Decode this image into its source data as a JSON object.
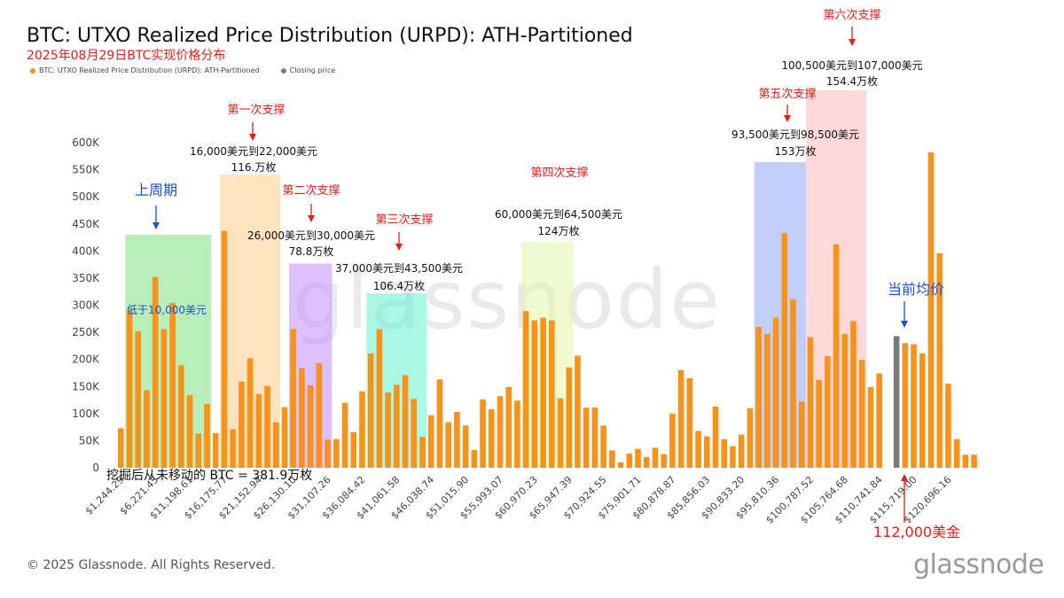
{
  "header": {
    "title": "BTC: UTXO Realized Price Distribution (URPD): ATH-Partitioned",
    "subtitle": "2025年08月29日BTC实现价格分布"
  },
  "legend": [
    {
      "label": "BTC: UTXO Realized Price Distribution (URPD): ATH-Partitioned",
      "color": "#f7931a"
    },
    {
      "label": "Closing price",
      "color": "#7a7a7a"
    }
  ],
  "footer": {
    "copyright": "© 2025 Glassnode. All Rights Reserved.",
    "brand": "glassnode",
    "watermark": "glassnode"
  },
  "chart_data": {
    "type": "bar",
    "yticks": [
      "0",
      "50K",
      "100K",
      "150K",
      "200K",
      "250K",
      "300K",
      "350K",
      "400K",
      "450K",
      "500K",
      "550K",
      "600K"
    ],
    "ylim": [
      0,
      600000
    ],
    "xtick_labels": [
      "$1,244.29",
      "$6,221.45",
      "$11,198.61",
      "$16,175.77",
      "$21,152.94",
      "$26,130.10",
      "$31,107.26",
      "$36,084.42",
      "$41,061.58",
      "$46,038.74",
      "$51,015.90",
      "$55,993.07",
      "$60,970.23",
      "$65,947.39",
      "$70,924.55",
      "$75,901.71",
      "$80,878.87",
      "$85,856.03",
      "$90,833.20",
      "$95,810.36",
      "$100,787.52",
      "$105,764.68",
      "$110,741.84",
      "$115,719.00",
      "$120,696.16"
    ],
    "colors": {
      "bar": "#f7931a",
      "closing": "#7a7a7a"
    },
    "closing_index": 90,
    "values": [
      73000,
      291000,
      252000,
      143000,
      352000,
      256000,
      304000,
      189000,
      134000,
      63000,
      118000,
      64000,
      437000,
      71000,
      159000,
      202000,
      136000,
      151000,
      84000,
      112000,
      256000,
      184000,
      152000,
      193000,
      52000,
      53000,
      120000,
      66000,
      141000,
      211000,
      256000,
      139000,
      153000,
      171000,
      127000,
      57000,
      97000,
      163000,
      84000,
      103000,
      78000,
      33000,
      126000,
      108000,
      132000,
      149000,
      124000,
      289000,
      272000,
      277000,
      272000,
      128000,
      185000,
      207000,
      111000,
      111000,
      78000,
      32000,
      10000,
      26000,
      35000,
      20000,
      37000,
      25000,
      100000,
      180000,
      165000,
      68000,
      58000,
      113000,
      53000,
      40000,
      61000,
      110000,
      260000,
      247000,
      277000,
      433000,
      311000,
      122000,
      241000,
      162000,
      206000,
      412000,
      247000,
      271000,
      199000,
      149000,
      174000,
      0,
      243000,
      230000,
      228000,
      211000,
      582000,
      396000,
      155000,
      53000,
      24000,
      24000
    ],
    "zones": [
      {
        "start": 1,
        "end": 10,
        "color": "#7fe07f",
        "label": "低于10,000美元",
        "label_color": "#1a4fd6",
        "top": 430000
      },
      {
        "start": 12,
        "end": 18,
        "color": "#ffcc88",
        "top": 541000
      },
      {
        "start": 20,
        "end": 24,
        "color": "#c58cff",
        "top": 377000
      },
      {
        "start": 29,
        "end": 35,
        "color": "#66f0d0",
        "top": 322000
      },
      {
        "start": 47,
        "end": 52,
        "color": "#e6f5a8",
        "top": 417000
      },
      {
        "start": 74,
        "end": 79,
        "color": "#8fa8f5",
        "top": 564000
      },
      {
        "start": 80,
        "end": 86,
        "color": "#ffb8bc",
        "top": 698000
      }
    ],
    "annotations": {
      "s1_title": "第一次支撑",
      "s1_range": "16,000美元到22,000美元",
      "s1_amount": "116.万枚",
      "s2_title": "第二次支撑",
      "s2_range": "26,000美元到30,000美元",
      "s2_amount": "78.8万枚",
      "s3_title": "第三次支撑",
      "s3_range": "37,000美元到43,500美元",
      "s3_amount": "106.4万枚",
      "s4_title": "第四次支撑",
      "s4_range": "60,000美元到64,500美元",
      "s4_amount": "124万枚",
      "s5_title": "第五次支撑",
      "s5_range": "93,500美元到98,500美元",
      "s5_amount": "153万枚",
      "s6_title": "第六次支撑",
      "s6_range": "100,500美元到107,000美元",
      "s6_amount": "154.4万枚",
      "prev_cycle": "上周期",
      "current_avg": "当前均价",
      "price_112k": "112,000美金",
      "unmoved": "挖掘后从未移动的 BTC = 381.9万枚"
    }
  }
}
